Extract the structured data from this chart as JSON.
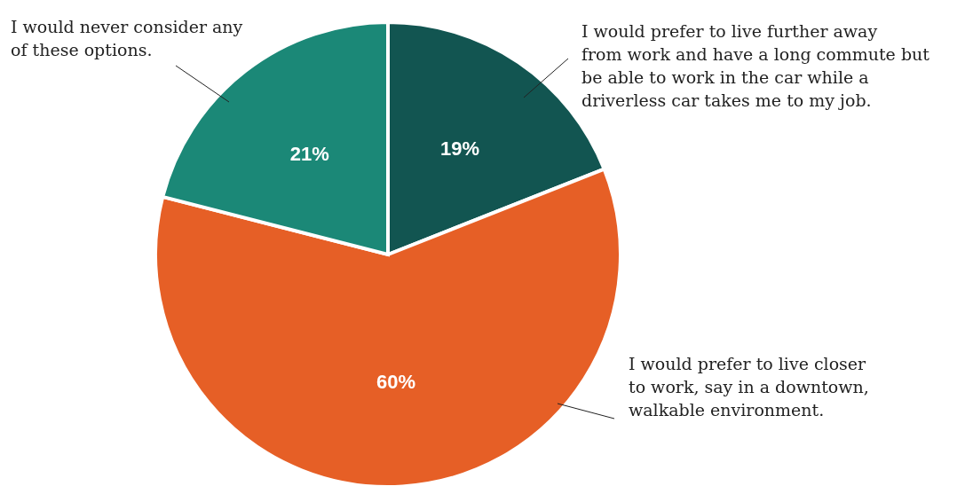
{
  "chart_data": {
    "type": "pie",
    "categories": [
      "I would prefer to live further away from work and have a long commute but be able to work in the car while a driverless car takes me to my job.",
      "I would prefer to live closer to work, say in a downtown, walkable environment.",
      "I would never consider any of these options."
    ],
    "values": [
      19,
      60,
      21
    ],
    "colors": [
      "#125551",
      "#e65f26",
      "#1b8877"
    ],
    "value_labels": [
      "19%",
      "60%",
      "21%"
    ]
  }
}
